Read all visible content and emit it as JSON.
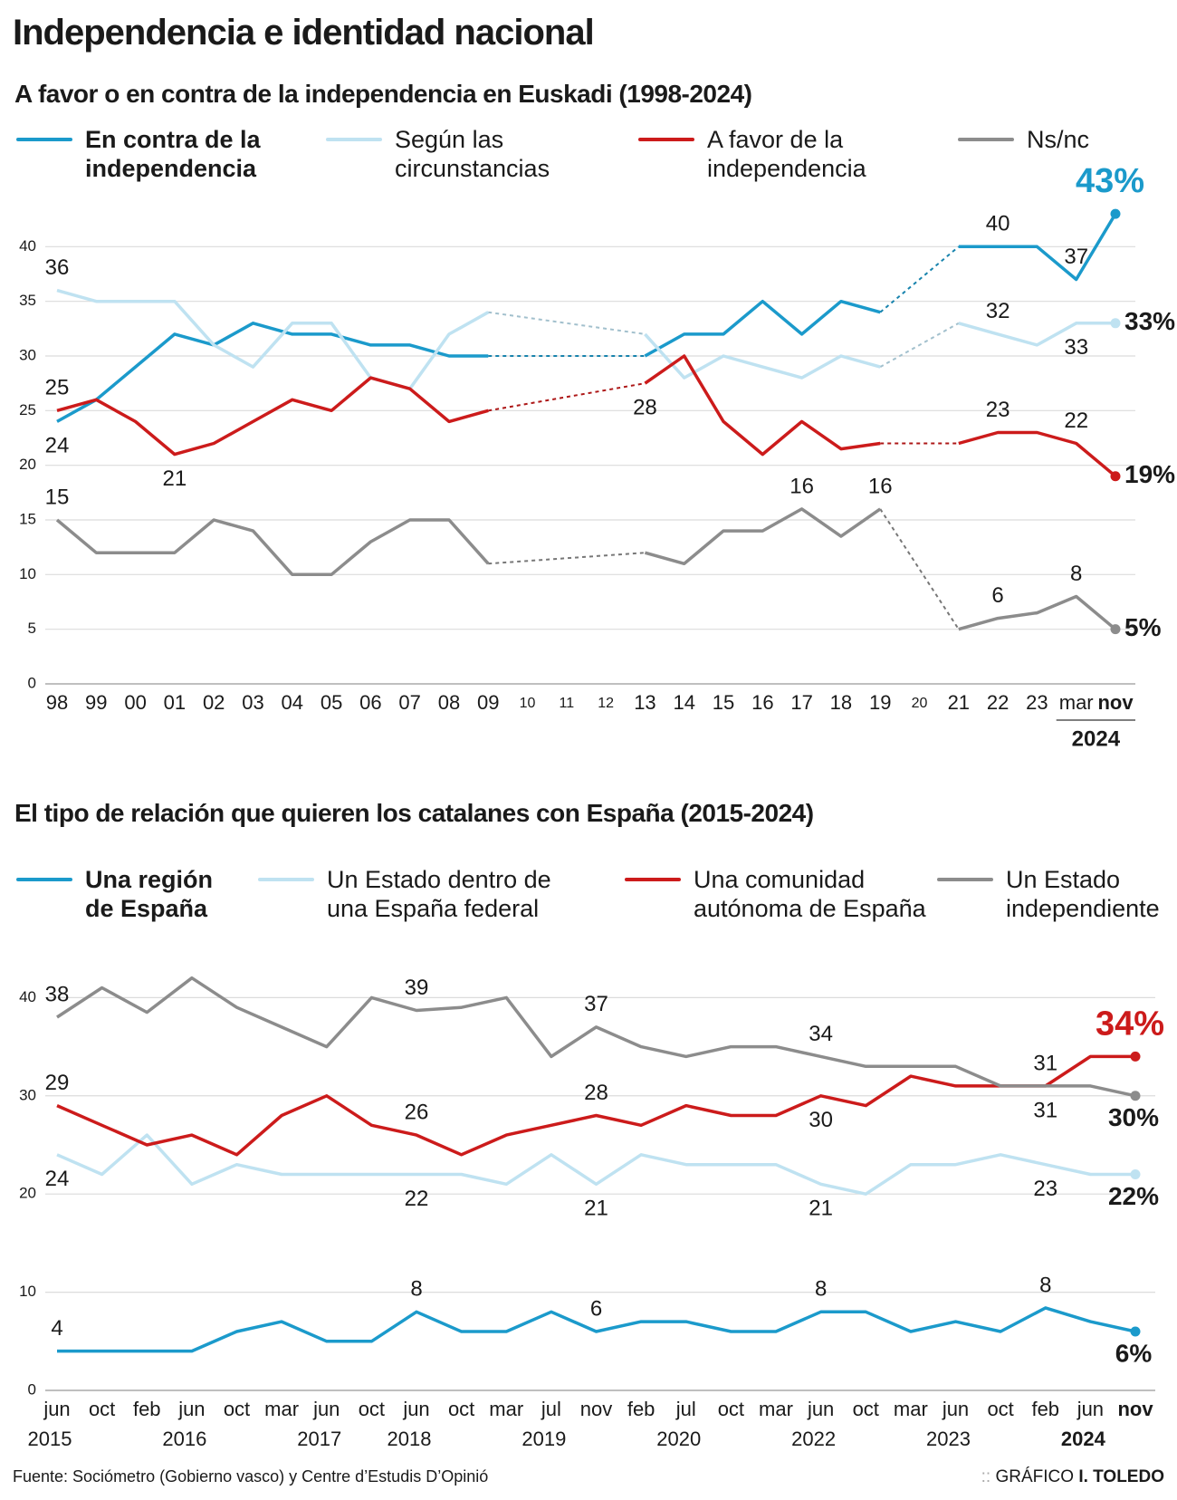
{
  "title": "Independencia e identidad nacional",
  "source": "Fuente: Sociómetro (Gobierno vasco) y Centre d’Estudis D’Opinió",
  "credit_prefix": "GRÁFICO",
  "credit_author": "I. TOLEDO",
  "chart_data": [
    {
      "type": "line",
      "title": "A favor o en contra de la independencia en Euskadi (1998-2024)",
      "categories": [
        "98",
        "99",
        "00",
        "01",
        "02",
        "03",
        "04",
        "05",
        "06",
        "07",
        "08",
        "09",
        "10",
        "11",
        "12",
        "13",
        "14",
        "15",
        "16",
        "17",
        "18",
        "19",
        "20",
        "21",
        "22",
        "23",
        "mar",
        "nov"
      ],
      "year_label": "2024",
      "ylim": [
        0,
        45
      ],
      "yticks": [
        0,
        5,
        10,
        15,
        20,
        25,
        30,
        35,
        40
      ],
      "grid": true,
      "series": [
        {
          "name": "En contra de la independencia",
          "color": "#1b9acb",
          "values": [
            24,
            26,
            29,
            32,
            31,
            33,
            32,
            32,
            31,
            31,
            30,
            30,
            null,
            null,
            null,
            30,
            32,
            32,
            35,
            32,
            35,
            34,
            null,
            40,
            40,
            40,
            37,
            43
          ],
          "value_labels": [
            "24",
            null,
            null,
            null,
            null,
            null,
            null,
            null,
            null,
            null,
            null,
            null,
            null,
            null,
            null,
            null,
            null,
            null,
            null,
            null,
            null,
            null,
            null,
            null,
            "40",
            null,
            "37",
            "43%"
          ]
        },
        {
          "name": "Según las circunstancias",
          "color": "#bfe2f1",
          "values": [
            36,
            35,
            35,
            35,
            31,
            29,
            33,
            33,
            28,
            27,
            32,
            34,
            null,
            null,
            null,
            32,
            28,
            30,
            29,
            28,
            30,
            29,
            null,
            33,
            32,
            31,
            33,
            33
          ],
          "value_labels": [
            "36",
            null,
            null,
            null,
            null,
            null,
            null,
            null,
            null,
            null,
            null,
            null,
            null,
            null,
            null,
            null,
            null,
            null,
            null,
            null,
            null,
            null,
            null,
            null,
            "32",
            null,
            "33",
            "33%"
          ]
        },
        {
          "name": "A favor de la independencia",
          "color": "#cc1b1b",
          "values": [
            25,
            26,
            24,
            21,
            22,
            24,
            26,
            25,
            28,
            27,
            24,
            25,
            null,
            null,
            null,
            27.5,
            30,
            24,
            21,
            24,
            21.5,
            22,
            null,
            22,
            23,
            23,
            22,
            19
          ],
          "value_labels": [
            "25",
            null,
            null,
            "21",
            null,
            null,
            null,
            null,
            null,
            null,
            null,
            null,
            null,
            null,
            null,
            "28",
            null,
            null,
            null,
            null,
            null,
            null,
            null,
            null,
            "23",
            null,
            "22",
            "19%"
          ]
        },
        {
          "name": "Ns/nc",
          "color": "#8c8c8c",
          "values": [
            15,
            12,
            12,
            12,
            15,
            14,
            10,
            10,
            13,
            15,
            15,
            11,
            null,
            null,
            null,
            12,
            11,
            14,
            14,
            16,
            13.5,
            16,
            null,
            5,
            6,
            6.5,
            8,
            5
          ],
          "value_labels": [
            "15",
            null,
            null,
            null,
            null,
            null,
            null,
            null,
            null,
            null,
            null,
            null,
            null,
            null,
            null,
            null,
            null,
            null,
            null,
            "16",
            null,
            "16",
            null,
            null,
            "6",
            null,
            "8",
            "5%"
          ]
        }
      ]
    },
    {
      "type": "line",
      "title": "El tipo de relación que quieren los catalanes con España (2015-2024)",
      "categories": [
        "jun",
        "oct",
        "feb",
        "jun",
        "oct",
        "mar",
        "jun",
        "oct",
        "jun",
        "oct",
        "mar",
        "jul",
        "nov",
        "feb",
        "jul",
        "oct",
        "mar",
        "jun",
        "oct",
        "mar",
        "jun",
        "oct",
        "feb",
        "jun",
        "nov"
      ],
      "years": [
        "2015",
        null,
        null,
        "2016",
        null,
        null,
        "2017",
        null,
        "2018",
        null,
        null,
        "2019",
        null,
        null,
        "2020",
        null,
        null,
        "2022",
        null,
        null,
        "2023",
        null,
        null,
        "2024",
        null
      ],
      "ylim": [
        0,
        44
      ],
      "yticks": [
        0,
        10,
        20,
        30,
        40
      ],
      "grid": true,
      "series": [
        {
          "name": "Una región de España",
          "color": "#1b9acb",
          "values": [
            4,
            4,
            4,
            4,
            6,
            7,
            5,
            5,
            8,
            6,
            6,
            8,
            6,
            7,
            7,
            6,
            6,
            8,
            8,
            6,
            7,
            6,
            8.4,
            7,
            6
          ],
          "value_labels": [
            "4",
            null,
            null,
            null,
            null,
            null,
            null,
            null,
            "8",
            null,
            null,
            null,
            "6",
            null,
            null,
            null,
            null,
            "8",
            null,
            null,
            null,
            null,
            "8",
            null,
            "6%"
          ]
        },
        {
          "name": "Un Estado dentro de una España federal",
          "color": "#bfe2f1",
          "values": [
            24,
            22,
            26,
            21,
            23,
            22,
            22,
            22,
            22,
            22,
            21,
            24,
            21,
            24,
            23,
            23,
            23,
            21,
            20,
            23,
            23,
            24,
            23,
            22,
            22
          ],
          "value_labels": [
            "24",
            null,
            null,
            null,
            null,
            null,
            null,
            null,
            "22",
            null,
            null,
            null,
            "21",
            null,
            null,
            null,
            null,
            "21",
            null,
            null,
            null,
            null,
            "23",
            null,
            "22%"
          ]
        },
        {
          "name": "Una comunidad autónoma de España",
          "color": "#cc1b1b",
          "values": [
            29,
            27,
            25,
            26,
            24,
            28,
            30,
            27,
            26,
            24,
            26,
            27,
            28,
            27,
            29,
            28,
            28,
            30,
            29,
            32,
            31,
            31,
            31,
            34,
            34
          ],
          "value_labels": [
            "29",
            null,
            null,
            null,
            null,
            null,
            null,
            null,
            "26",
            null,
            null,
            null,
            "28",
            null,
            null,
            null,
            null,
            "30",
            null,
            null,
            null,
            null,
            "31",
            null,
            "34%"
          ]
        },
        {
          "name": "Un Estado independiente",
          "color": "#8c8c8c",
          "values": [
            38,
            41,
            38.5,
            42,
            39,
            37,
            35,
            40,
            38.7,
            39,
            40,
            34,
            37,
            35,
            34,
            35,
            35,
            34,
            33,
            33,
            33,
            31,
            31,
            31,
            30
          ],
          "value_labels": [
            "38",
            null,
            null,
            null,
            null,
            null,
            null,
            null,
            "39",
            null,
            null,
            null,
            "37",
            null,
            null,
            null,
            null,
            "34",
            null,
            null,
            null,
            null,
            "31",
            null,
            "30%"
          ]
        }
      ]
    }
  ]
}
